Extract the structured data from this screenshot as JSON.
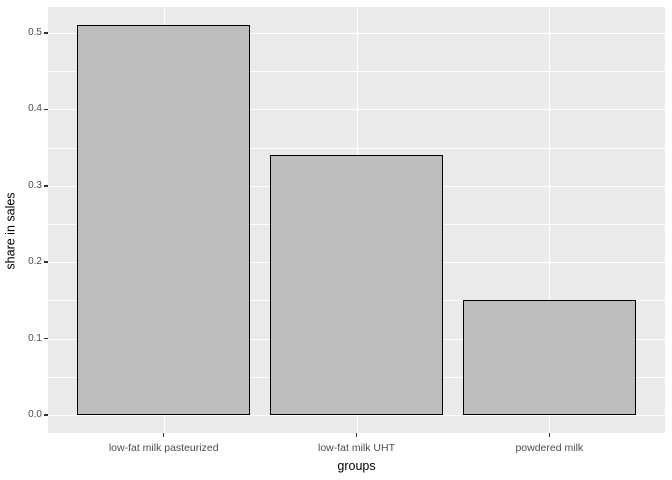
{
  "chart_data": {
    "type": "bar",
    "categories": [
      "low-fat milk pasteurized",
      "low-fat milk UHT",
      "powdered milk"
    ],
    "values": [
      0.51,
      0.34,
      0.15
    ],
    "title": "",
    "xlabel": "groups",
    "ylabel": "share in sales",
    "ylim": [
      -0.026,
      0.536
    ],
    "yticks": [
      0.0,
      0.1,
      0.2,
      0.3,
      0.4,
      0.5
    ],
    "yticks_minor": [
      0.05,
      0.15,
      0.25,
      0.35,
      0.45
    ],
    "grid": true,
    "legend": false,
    "style": {
      "outer_bg": "#FFFFFF",
      "panel_bg": "#EBEBEB",
      "grid_color": "#FFFFFF",
      "bar_fill": "#BEBEBE",
      "bar_border": "#000000",
      "tick_label_color": "#4D4D4D",
      "axis_title_color": "#000000",
      "tick_mark_color": "#333333"
    }
  }
}
